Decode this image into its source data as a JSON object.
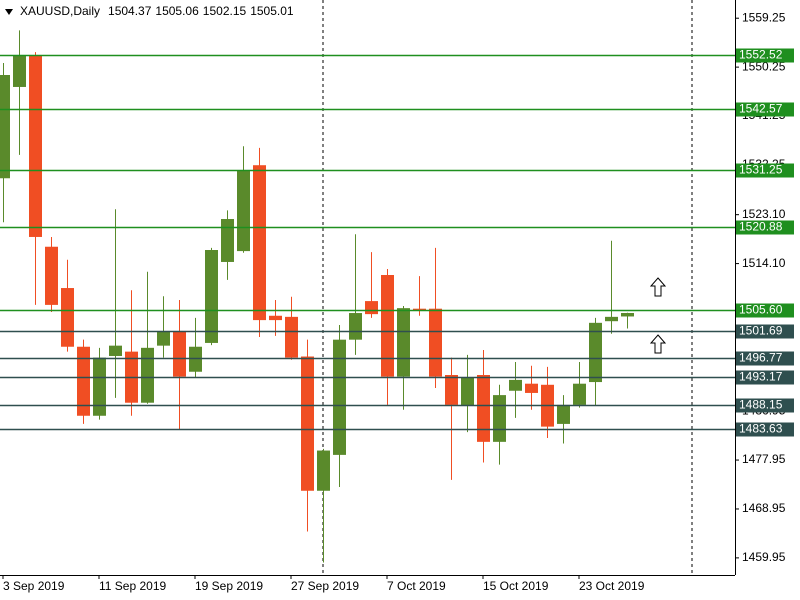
{
  "chart_data": {
    "type": "candlestick",
    "title": "XAUUSD,Daily",
    "categories": [
      "3 Sep 2019",
      null,
      null,
      null,
      null,
      null,
      "11 Sep 2019",
      null,
      null,
      null,
      null,
      null,
      "19 Sep 2019",
      null,
      null,
      null,
      null,
      null,
      "27 Sep 2019",
      null,
      null,
      null,
      null,
      null,
      "7 Oct 2019",
      null,
      null,
      null,
      null,
      null,
      "15 Oct 2019",
      null,
      null,
      null,
      null,
      null,
      "23 Oct 2019",
      null,
      null,
      null
    ],
    "open": [
      1529.8,
      1546.6,
      1552.3,
      1517.2,
      1509.6,
      1498.8,
      1486.1,
      1497.1,
      1497.9,
      1488.5,
      1499.0,
      1501.7,
      1494.2,
      1499.5,
      1514.4,
      1516.4,
      1532.2,
      1504.5,
      1504.3,
      1497.0,
      1472.3,
      1478.9,
      1500.1,
      1507.2,
      1512.0,
      1493.3,
      1505.8,
      1505.8,
      1493.6,
      1487.9,
      1493.6,
      1481.3,
      1490.7,
      1492.0,
      1491.8,
      1484.6,
      1488.1,
      1492.3,
      1503.5,
      1504.37
    ],
    "high": [
      1551.0,
      1557.0,
      1553.0,
      1519.0,
      1514.8,
      1500.1,
      1498.6,
      1524.1,
      1509.2,
      1512.6,
      1508.1,
      1507.4,
      1504.1,
      1517.0,
      1523.9,
      1535.7,
      1535.4,
      1507.4,
      1508.0,
      1500.1,
      1480.0,
      1502.8,
      1519.5,
      1516.2,
      1513.1,
      1506.3,
      1511.8,
      1517.0,
      1496.8,
      1497.3,
      1498.2,
      1491.8,
      1496.0,
      1495.3,
      1495.1,
      1489.9,
      1496.0,
      1504.1,
      1518.3,
      1505.06
    ],
    "low": [
      1521.7,
      1534.1,
      1506.5,
      1505.2,
      1497.9,
      1484.6,
      1485.4,
      1489.4,
      1486.1,
      1488.3,
      1496.8,
      1483.5,
      1493.1,
      1499.1,
      1511.1,
      1516.1,
      1500.6,
      1500.8,
      1496.4,
      1464.8,
      1459.1,
      1473.0,
      1497.3,
      1504.1,
      1488.1,
      1487.2,
      1504.5,
      1491.2,
      1474.3,
      1483.1,
      1477.5,
      1477.1,
      1485.7,
      1487.2,
      1482.0,
      1481.0,
      1487.6,
      1487.9,
      1501.2,
      1502.15
    ],
    "close": [
      1548.8,
      1552.3,
      1519.0,
      1506.5,
      1498.8,
      1486.1,
      1496.8,
      1499.0,
      1488.5,
      1498.6,
      1501.7,
      1493.3,
      1498.8,
      1516.6,
      1522.3,
      1531.3,
      1503.7,
      1503.7,
      1496.8,
      1472.3,
      1479.7,
      1500.1,
      1505.0,
      1504.8,
      1493.3,
      1505.9,
      1505.4,
      1493.3,
      1488.1,
      1493.1,
      1481.3,
      1489.9,
      1492.7,
      1490.3,
      1484.1,
      1488.1,
      1492.0,
      1503.2,
      1504.3,
      1505.01
    ],
    "up_color": "#5a8a2b",
    "down_color": "#f04e23",
    "ylim": [
      1456.8,
      1562.6
    ],
    "yticks": [
      1559.25,
      1550.25,
      1541.25,
      1532.25,
      {
        "value": 1523.1,
        "label": "1523.10"
      },
      {
        "value": 1514.1,
        "label": "1514.10"
      },
      1486.95,
      1477.95,
      1468.95,
      1459.95
    ],
    "levels": [
      1552.52,
      1542.57,
      1531.25,
      1520.88,
      {
        "value": 1505.6,
        "label": "1505.60"
      },
      1501.69,
      1496.77,
      1493.17,
      1488.15,
      1483.63
    ],
    "level_colors": [
      "#1f8f1f",
      "#1f8f1f",
      "#1f8f1f",
      "#1f8f1f",
      "#1f8f1f",
      "#2f4f4f",
      "#2f4f4f",
      "#2f4f4f",
      "#2f4f4f",
      "#2f4f4f"
    ]
  }
}
